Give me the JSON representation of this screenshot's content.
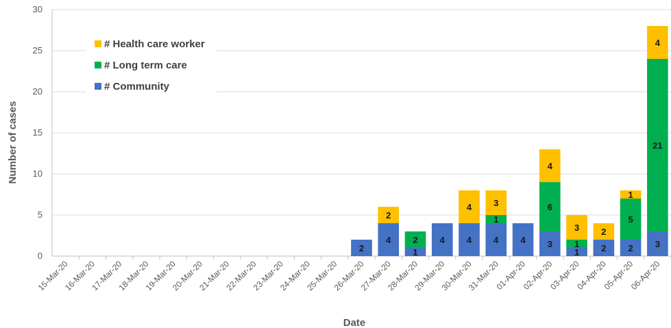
{
  "chart_data": {
    "type": "bar",
    "stacked": true,
    "xlabel": "Date",
    "ylabel": "Number of cases",
    "ylim": [
      0,
      30
    ],
    "yticks": [
      0,
      5,
      10,
      15,
      20,
      25,
      30
    ],
    "grid": true,
    "legend_position": "top-left",
    "categories": [
      "15-Mar-20",
      "16-Mar-20",
      "17-Mar-20",
      "18-Mar-20",
      "19-Mar-20",
      "20-Mar-20",
      "21-Mar-20",
      "22-Mar-20",
      "23-Mar-20",
      "24-Mar-20",
      "25-Mar-20",
      "26-Mar-20",
      "27-Mar-20",
      "28-Mar-20",
      "29-Mar-20",
      "30-Mar-20",
      "31-Mar-20",
      "01-Apr-20",
      "02-Apr-20",
      "03-Apr-20",
      "04-Apr-20",
      "05-Apr-20",
      "06-Apr-20"
    ],
    "series": [
      {
        "name": "# Community",
        "color": "#4472c4",
        "values": [
          0,
          0,
          0,
          0,
          0,
          0,
          0,
          0,
          0,
          0,
          0,
          2,
          4,
          1,
          4,
          4,
          4,
          4,
          3,
          1,
          2,
          2,
          3
        ]
      },
      {
        "name": "# Long term care",
        "color": "#00b050",
        "values": [
          0,
          0,
          0,
          0,
          0,
          0,
          0,
          0,
          0,
          0,
          0,
          0,
          0,
          2,
          0,
          0,
          1,
          0,
          6,
          1,
          0,
          5,
          21
        ]
      },
      {
        "name": "# Health care worker",
        "color": "#ffc000",
        "values": [
          0,
          0,
          0,
          0,
          0,
          0,
          0,
          0,
          0,
          0,
          0,
          0,
          2,
          0,
          0,
          4,
          3,
          0,
          4,
          3,
          2,
          1,
          4
        ]
      }
    ],
    "legend_order": [
      "# Health care worker",
      "# Long term care",
      "# Community"
    ]
  }
}
